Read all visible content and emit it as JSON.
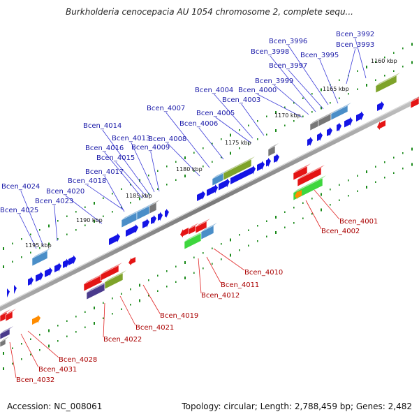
{
  "title": "Burkholderia cenocepacia AU 1054 chromosome 2, complete sequ...",
  "accession": "Accession: NC_008061",
  "summary": "Topology: circular; Length: 2,788,459 bp; Genes: 2,482",
  "colors": {
    "backbone": "#8c8c8c",
    "upper_label": "#1a1aa8",
    "lower_label": "#aa0000",
    "leader_upper": "#3a3ad8",
    "leader_lower": "#e02020",
    "tick_dots": "#1a8a1a",
    "blue": "#1414e6",
    "steel": "#4a8ec8",
    "olive": "#7ea32a",
    "grey": "#777777",
    "red": "#e41414",
    "green": "#3ed63e",
    "purple": "#4a3a8c",
    "orange": "#ff8c00"
  },
  "kbp_ticks": [
    "1160 kbp",
    "1165 kbp",
    "1170 kbp",
    "1175 kbp",
    "1180 kbp",
    "1185 kbp",
    "1190 kbp",
    "1195 kbp"
  ],
  "upper_genes": [
    "Bcen_3992",
    "Bcen_3993",
    "Bcen_3995",
    "Bcen_3996",
    "Bcen_3997",
    "Bcen_3998",
    "Bcen_3999",
    "Bcen_4000",
    "Bcen_4003",
    "Bcen_4004",
    "Bcen_4005",
    "Bcen_4006",
    "Bcen_4007",
    "Bcen_4008",
    "Bcen_4009",
    "Bcen_4013",
    "Bcen_4014",
    "Bcen_4015",
    "Bcen_4016",
    "Bcen_4017",
    "Bcen_4018",
    "Bcen_4020",
    "Bcen_4023",
    "Bcen_4024",
    "Bcen_4025"
  ],
  "lower_genes": [
    "Bcen_4001",
    "Bcen_4002",
    "Bcen_4010",
    "Bcen_4011",
    "Bcen_4012",
    "Bcen_4019",
    "Bcen_4021",
    "Bcen_4022",
    "Bcen_4028",
    "Bcen_4031",
    "Bcen_4032"
  ]
}
